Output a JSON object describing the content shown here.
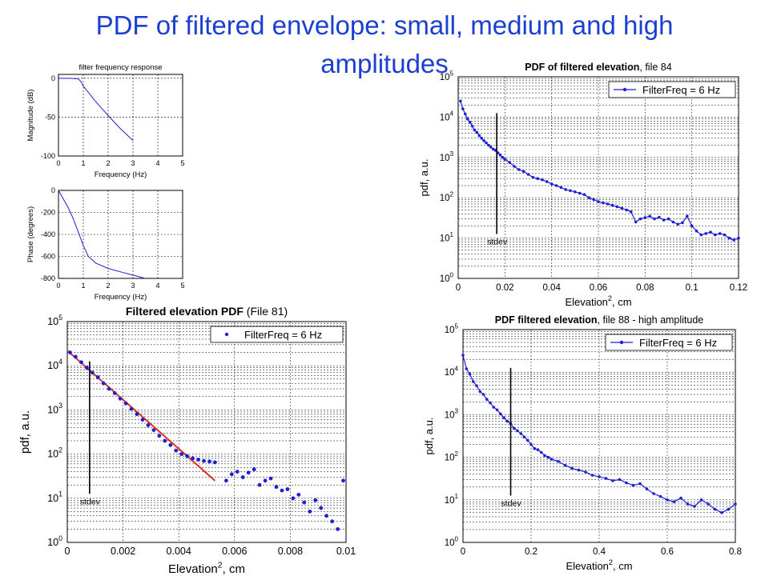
{
  "slide": {
    "title_line1": "PDF of filtered envelope: small, medium and high",
    "title_line2": "amplitudes"
  },
  "colors": {
    "title": "#1a3fd1",
    "series": "#1f1fd6",
    "fit": "#e0301e",
    "grid": "#000000"
  },
  "chart_data": [
    {
      "id": "mag",
      "type": "line",
      "title": "filter frequency response",
      "xlabel": "Frequency (Hz)",
      "ylabel": "Magnitude (dB)",
      "xlim": [
        0,
        5
      ],
      "ylim": [
        -100,
        5
      ],
      "xticks": [
        0,
        1,
        2,
        3,
        4,
        5
      ],
      "yticks": [
        0,
        -50,
        -100
      ],
      "grid": true,
      "series": [
        {
          "x": [
            0,
            0.5,
            0.8,
            0.9,
            1.0,
            1.2,
            1.5,
            2.0,
            2.5,
            3.0
          ],
          "y": [
            0,
            0,
            -1,
            -4,
            -10,
            -18,
            -30,
            -48,
            -65,
            -80
          ]
        }
      ]
    },
    {
      "id": "phase",
      "type": "line",
      "title": "",
      "xlabel": "Frequency (Hz)",
      "ylabel": "Phase (degrees)",
      "xlim": [
        0,
        5
      ],
      "ylim": [
        -800,
        0
      ],
      "xticks": [
        0,
        1,
        2,
        3,
        4,
        5
      ],
      "yticks": [
        0,
        -200,
        -400,
        -600,
        -800
      ],
      "grid": true,
      "series": [
        {
          "x": [
            0,
            0.2,
            0.4,
            0.6,
            0.8,
            1.0,
            1.2,
            1.5,
            2.0,
            2.5,
            3.0,
            3.5
          ],
          "y": [
            0,
            -80,
            -160,
            -260,
            -380,
            -500,
            -600,
            -660,
            -710,
            -740,
            -770,
            -800
          ]
        }
      ]
    },
    {
      "id": "file84",
      "type": "line",
      "title": "PDF of filtered elevation",
      "title_suffix": ", file 84",
      "xlabel": "Elevation",
      "xlabel_sup": "2",
      "xlabel_unit": ", cm",
      "ylabel": "pdf, a.u.",
      "xlim": [
        0,
        0.12
      ],
      "ylim": [
        1,
        100000
      ],
      "yscale": "log",
      "xticks": [
        "0",
        "0.02",
        "0.04",
        "0.06",
        "0.08",
        "0.1",
        "0.12"
      ],
      "grid": true,
      "legend": "FilterFreq = 6 Hz",
      "annotation": {
        "text": "stdev",
        "x": 0.0165
      },
      "series": [
        {
          "name": "FilterFreq = 6 Hz",
          "style": "line-marker",
          "x": [
            0.001,
            0.002,
            0.003,
            0.004,
            0.005,
            0.006,
            0.007,
            0.008,
            0.009,
            0.01,
            0.011,
            0.012,
            0.013,
            0.014,
            0.015,
            0.016,
            0.017,
            0.018,
            0.019,
            0.02,
            0.022,
            0.024,
            0.026,
            0.028,
            0.03,
            0.032,
            0.034,
            0.036,
            0.038,
            0.04,
            0.042,
            0.044,
            0.046,
            0.048,
            0.05,
            0.052,
            0.054,
            0.056,
            0.058,
            0.06,
            0.062,
            0.064,
            0.066,
            0.068,
            0.07,
            0.072,
            0.074,
            0.076,
            0.078,
            0.08,
            0.082,
            0.084,
            0.086,
            0.088,
            0.09,
            0.092,
            0.094,
            0.096,
            0.098,
            0.1,
            0.102,
            0.104,
            0.106,
            0.108,
            0.11,
            0.112,
            0.114,
            0.116,
            0.118,
            0.12
          ],
          "y": [
            25000,
            16000,
            12000,
            9000,
            7500,
            6000,
            4800,
            4200,
            3500,
            3000,
            2600,
            2300,
            2000,
            1800,
            1600,
            1500,
            1300,
            1150,
            1000,
            900,
            750,
            600,
            500,
            450,
            380,
            320,
            300,
            280,
            250,
            220,
            200,
            180,
            160,
            150,
            140,
            130,
            120,
            100,
            90,
            80,
            75,
            70,
            65,
            60,
            55,
            50,
            45,
            25,
            30,
            32,
            35,
            30,
            33,
            28,
            30,
            25,
            22,
            24,
            35,
            20,
            15,
            12,
            13,
            14,
            12,
            13,
            12,
            10,
            9,
            10
          ]
        }
      ]
    },
    {
      "id": "file81",
      "type": "scatter",
      "title": "Filtered elevation PDF",
      "title_suffix": " (File 81)",
      "xlabel": "Elevation",
      "xlabel_sup": "2",
      "xlabel_unit": ", cm",
      "ylabel": "pdf, a.u.",
      "xlim": [
        0,
        0.01
      ],
      "ylim": [
        1,
        100000
      ],
      "yscale": "log",
      "xticks": [
        "0",
        "0.002",
        "0.004",
        "0.006",
        "0.008",
        "0.01"
      ],
      "grid": true,
      "legend": "FilterFreq = 6 Hz",
      "annotation": {
        "text": "stdev",
        "x": 0.0008
      },
      "fit": {
        "x": [
          0,
          0.0053
        ],
        "y": [
          22000,
          25
        ]
      },
      "series": [
        {
          "name": "FilterFreq = 6 Hz",
          "style": "marker",
          "x": [
            0.0001,
            0.0003,
            0.0005,
            0.0007,
            0.0009,
            0.0011,
            0.0013,
            0.0015,
            0.0017,
            0.0019,
            0.0021,
            0.0023,
            0.0025,
            0.0027,
            0.0029,
            0.0031,
            0.0033,
            0.0035,
            0.0037,
            0.0039,
            0.0041,
            0.0043,
            0.0045,
            0.0047,
            0.0049,
            0.0051,
            0.0053,
            0.0057,
            0.0059,
            0.0061,
            0.0063,
            0.0065,
            0.0067,
            0.0069,
            0.0071,
            0.0073,
            0.0075,
            0.0077,
            0.0079,
            0.0081,
            0.0083,
            0.0085,
            0.0087,
            0.0089,
            0.0091,
            0.0093,
            0.0095,
            0.0097,
            0.0099
          ],
          "y": [
            20000,
            16000,
            12000,
            9000,
            7000,
            5500,
            4000,
            3000,
            2400,
            1800,
            1400,
            1050,
            800,
            600,
            450,
            350,
            260,
            200,
            160,
            120,
            100,
            90,
            80,
            75,
            70,
            68,
            65,
            25,
            35,
            40,
            30,
            38,
            45,
            20,
            25,
            28,
            18,
            15,
            16,
            10,
            12,
            8,
            5,
            9,
            6,
            4,
            3,
            2,
            25
          ]
        }
      ]
    },
    {
      "id": "file88",
      "type": "line",
      "title": "PDF filtered elevation",
      "title_suffix": ", file 88 - high amplitude",
      "xlabel": "Elevation",
      "xlabel_sup": "2",
      "xlabel_unit": ", cm",
      "ylabel": "pdf, a.u.",
      "xlim": [
        0,
        0.8
      ],
      "ylim": [
        1,
        100000
      ],
      "yscale": "log",
      "xticks": [
        "0",
        "0.2",
        "0.4",
        "0.6",
        "0.8"
      ],
      "grid": true,
      "legend": "FilterFreq = 6 Hz",
      "annotation": {
        "text": "stdev",
        "x": 0.14
      },
      "series": [
        {
          "name": "FilterFreq = 6 Hz",
          "style": "line-marker",
          "x": [
            0.0,
            0.01,
            0.02,
            0.03,
            0.04,
            0.05,
            0.06,
            0.07,
            0.08,
            0.09,
            0.1,
            0.11,
            0.12,
            0.13,
            0.14,
            0.15,
            0.16,
            0.17,
            0.18,
            0.19,
            0.2,
            0.21,
            0.22,
            0.23,
            0.24,
            0.25,
            0.26,
            0.28,
            0.3,
            0.32,
            0.34,
            0.36,
            0.38,
            0.4,
            0.42,
            0.44,
            0.46,
            0.48,
            0.5,
            0.52,
            0.54,
            0.56,
            0.58,
            0.6,
            0.62,
            0.64,
            0.66,
            0.68,
            0.7,
            0.72,
            0.74,
            0.76,
            0.78,
            0.8
          ],
          "y": [
            25000,
            12000,
            9000,
            6000,
            4800,
            3500,
            3000,
            2300,
            1900,
            1500,
            1300,
            1050,
            850,
            700,
            620,
            480,
            420,
            360,
            300,
            250,
            200,
            160,
            150,
            130,
            110,
            100,
            90,
            80,
            65,
            55,
            50,
            45,
            38,
            35,
            32,
            28,
            30,
            25,
            22,
            24,
            18,
            14,
            12,
            10,
            9,
            11,
            8,
            7,
            10,
            8,
            6,
            5,
            6,
            8
          ]
        }
      ]
    }
  ]
}
